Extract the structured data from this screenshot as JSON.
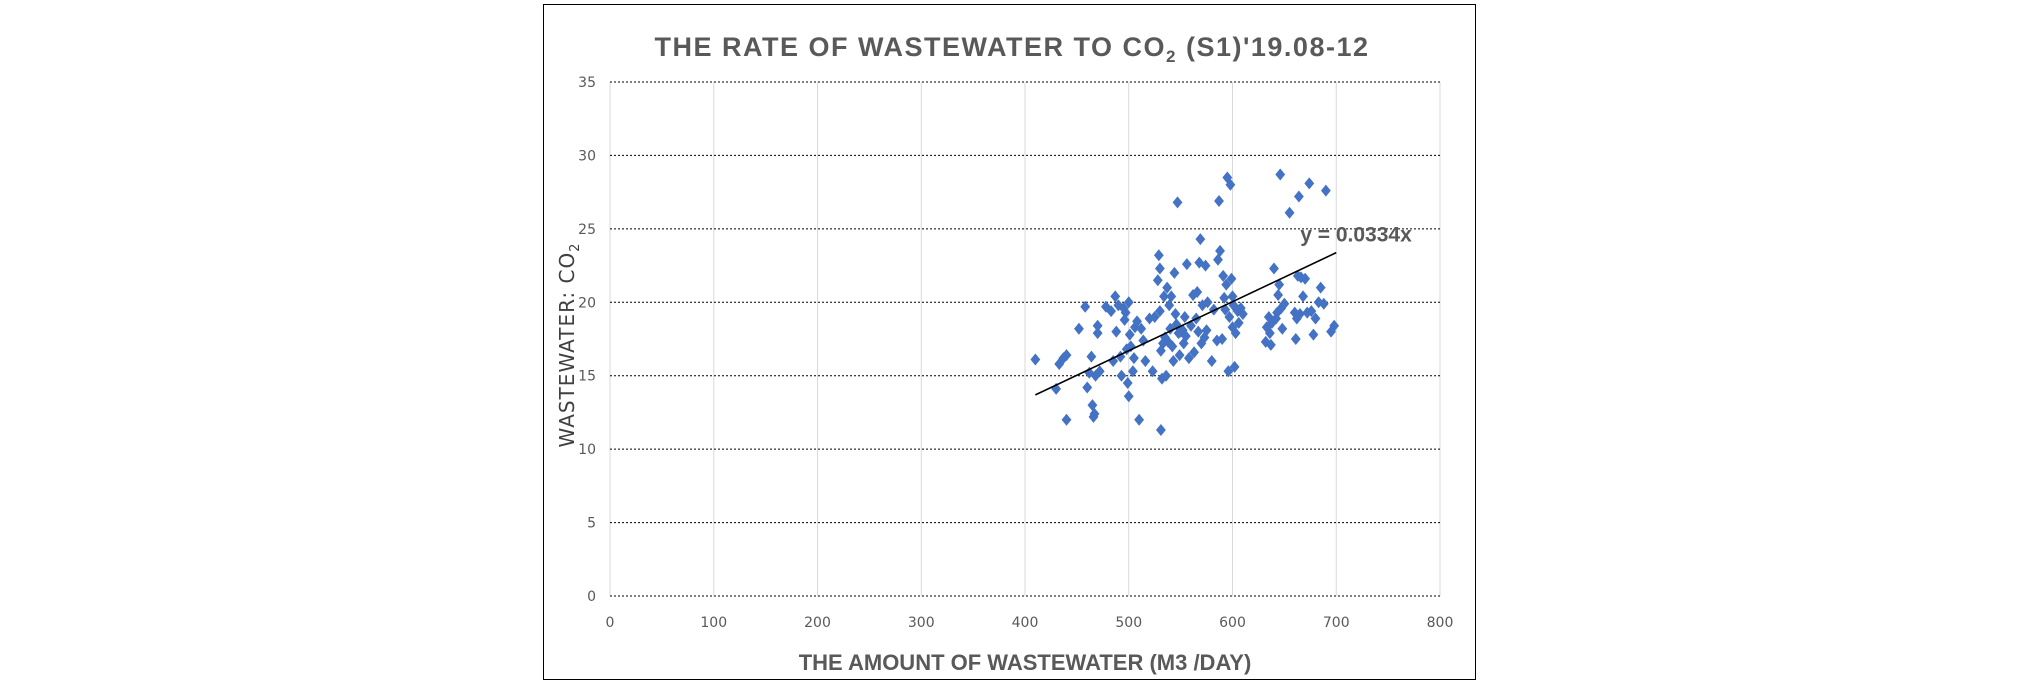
{
  "chart_data": {
    "type": "scatter",
    "title_main": "THE RATE OF WASTEWATER TO CO",
    "title_sub": "2",
    "title_tail": " (S1)'19.08-12",
    "xlabel": "THE AMOUNT OF WASTEWATER (M3 /DAY)",
    "ylabel_main": "WASTEWATER: CO",
    "ylabel_sub": "2",
    "xlim": [
      0,
      800
    ],
    "ylim": [
      0,
      35
    ],
    "x_ticks": [
      0,
      100,
      200,
      300,
      400,
      500,
      600,
      700,
      800
    ],
    "y_ticks": [
      0,
      5,
      10,
      15,
      20,
      25,
      30,
      35
    ],
    "horizontal_grid": "dotted",
    "vertical_grid": "light",
    "marker": "diamond",
    "marker_color": "#4472C4",
    "trendline": {
      "label": "y = 0.0334x",
      "slope": 0.0334,
      "x_range": [
        410,
        700
      ],
      "color": "#000000"
    },
    "points": [
      [
        410,
        16.1
      ],
      [
        430,
        14.1
      ],
      [
        433,
        15.8
      ],
      [
        437,
        16.2
      ],
      [
        440,
        16.4
      ],
      [
        440,
        12.0
      ],
      [
        452,
        18.2
      ],
      [
        458,
        19.7
      ],
      [
        460,
        14.2
      ],
      [
        462,
        15.2
      ],
      [
        464,
        16.3
      ],
      [
        465,
        13.0
      ],
      [
        466,
        12.2
      ],
      [
        467,
        12.4
      ],
      [
        468,
        15.0
      ],
      [
        470,
        17.9
      ],
      [
        470,
        18.4
      ],
      [
        472,
        15.3
      ],
      [
        478,
        19.7
      ],
      [
        483,
        19.4
      ],
      [
        485,
        16.0
      ],
      [
        487,
        20.4
      ],
      [
        488,
        18.0
      ],
      [
        490,
        19.8
      ],
      [
        492,
        16.3
      ],
      [
        493,
        15.0
      ],
      [
        495,
        19.6
      ],
      [
        496,
        18.8
      ],
      [
        497,
        19.3
      ],
      [
        498,
        16.8
      ],
      [
        499,
        14.5
      ],
      [
        500,
        13.6
      ],
      [
        500,
        20.0
      ],
      [
        501,
        17.8
      ],
      [
        502,
        17.0
      ],
      [
        504,
        15.3
      ],
      [
        505,
        16.2
      ],
      [
        506,
        18.3
      ],
      [
        508,
        18.7
      ],
      [
        510,
        12.0
      ],
      [
        512,
        18.2
      ],
      [
        514,
        17.4
      ],
      [
        516,
        16.0
      ],
      [
        520,
        18.9
      ],
      [
        523,
        15.3
      ],
      [
        525,
        19.0
      ],
      [
        528,
        21.5
      ],
      [
        529,
        23.2
      ],
      [
        530,
        22.3
      ],
      [
        530,
        19.4
      ],
      [
        531,
        16.7
      ],
      [
        531,
        11.3
      ],
      [
        532,
        14.8
      ],
      [
        533,
        17.2
      ],
      [
        534,
        20.4
      ],
      [
        535,
        17.6
      ],
      [
        536,
        15.0
      ],
      [
        537,
        21.0
      ],
      [
        538,
        17.3
      ],
      [
        539,
        19.8
      ],
      [
        540,
        18.2
      ],
      [
        541,
        20.4
      ],
      [
        542,
        17.0
      ],
      [
        543,
        16.0
      ],
      [
        544,
        22.0
      ],
      [
        545,
        19.2
      ],
      [
        546,
        18.5
      ],
      [
        547,
        26.8
      ],
      [
        548,
        17.9
      ],
      [
        549,
        16.4
      ],
      [
        550,
        18.0
      ],
      [
        552,
        18.1
      ],
      [
        553,
        17.2
      ],
      [
        554,
        19.0
      ],
      [
        555,
        17.7
      ],
      [
        556,
        22.6
      ],
      [
        558,
        16.2
      ],
      [
        560,
        18.4
      ],
      [
        562,
        20.5
      ],
      [
        563,
        16.6
      ],
      [
        565,
        18.9
      ],
      [
        566,
        20.7
      ],
      [
        567,
        18.0
      ],
      [
        568,
        22.7
      ],
      [
        569,
        24.3
      ],
      [
        570,
        17.2
      ],
      [
        571,
        19.8
      ],
      [
        573,
        17.6
      ],
      [
        574,
        22.5
      ],
      [
        575,
        18.1
      ],
      [
        576,
        20.0
      ],
      [
        580,
        16.0
      ],
      [
        582,
        19.5
      ],
      [
        585,
        17.4
      ],
      [
        586,
        22.9
      ],
      [
        587,
        26.9
      ],
      [
        588,
        23.5
      ],
      [
        590,
        17.5
      ],
      [
        591,
        21.8
      ],
      [
        592,
        20.3
      ],
      [
        593,
        19.5
      ],
      [
        594,
        21.2
      ],
      [
        595,
        28.5
      ],
      [
        596,
        15.3
      ],
      [
        597,
        19.0
      ],
      [
        598,
        28.0
      ],
      [
        599,
        21.6
      ],
      [
        600,
        20.4
      ],
      [
        600,
        18.3
      ],
      [
        601,
        19.8
      ],
      [
        602,
        15.6
      ],
      [
        603,
        17.9
      ],
      [
        605,
        19.4
      ],
      [
        606,
        18.6
      ],
      [
        608,
        19.6
      ],
      [
        610,
        19.2
      ],
      [
        632,
        17.3
      ],
      [
        633,
        18.3
      ],
      [
        635,
        19.0
      ],
      [
        636,
        17.9
      ],
      [
        637,
        17.1
      ],
      [
        638,
        18.6
      ],
      [
        640,
        22.3
      ],
      [
        642,
        18.9
      ],
      [
        643,
        19.3
      ],
      [
        644,
        20.5
      ],
      [
        645,
        21.2
      ],
      [
        646,
        28.7
      ],
      [
        647,
        19.6
      ],
      [
        648,
        18.2
      ],
      [
        650,
        19.9
      ],
      [
        655,
        26.1
      ],
      [
        660,
        19.3
      ],
      [
        661,
        17.5
      ],
      [
        662,
        18.9
      ],
      [
        663,
        21.8
      ],
      [
        664,
        27.2
      ],
      [
        665,
        19.2
      ],
      [
        666,
        21.7
      ],
      [
        668,
        20.4
      ],
      [
        670,
        21.6
      ],
      [
        672,
        19.3
      ],
      [
        674,
        28.1
      ],
      [
        676,
        19.4
      ],
      [
        678,
        17.8
      ],
      [
        680,
        18.9
      ],
      [
        683,
        20.0
      ],
      [
        685,
        21.0
      ],
      [
        688,
        19.9
      ],
      [
        690,
        27.6
      ],
      [
        695,
        18.0
      ],
      [
        698,
        18.4
      ]
    ]
  }
}
